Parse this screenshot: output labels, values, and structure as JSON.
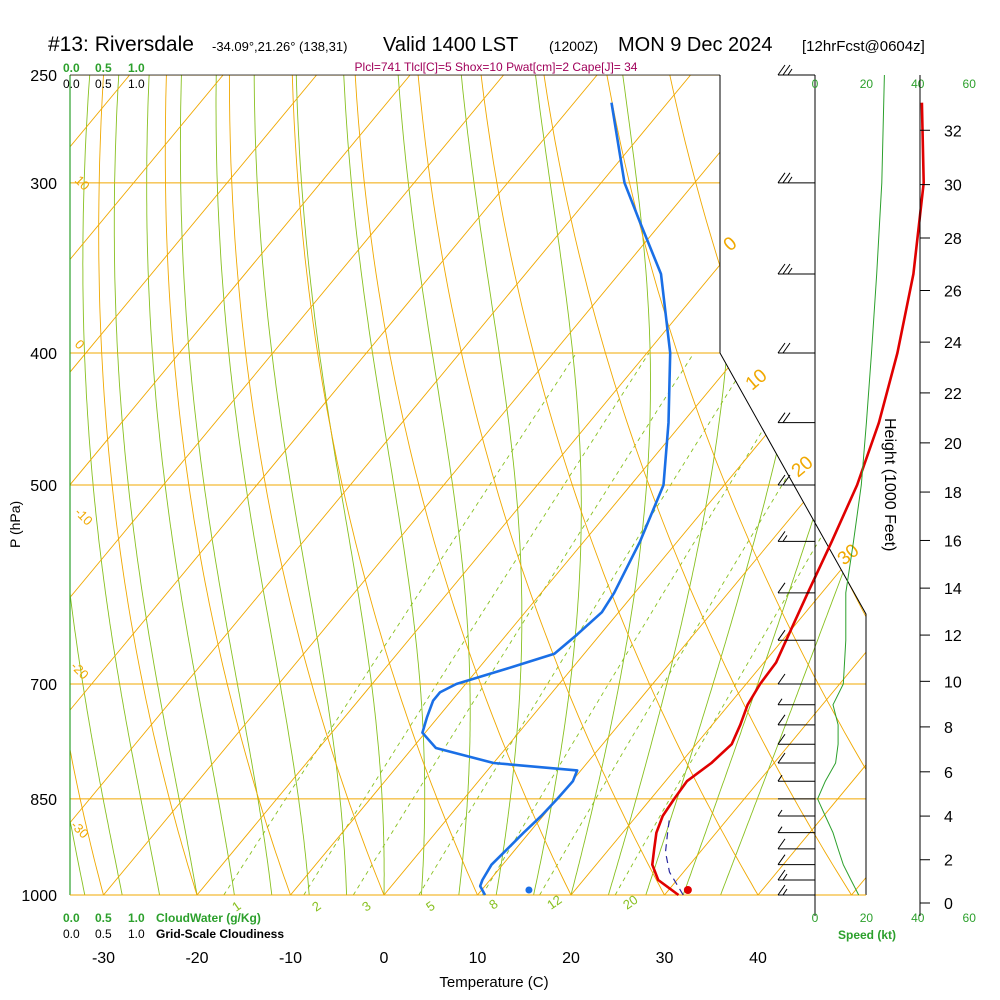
{
  "header": {
    "station": "#13: Riversdale",
    "coords": "-34.09°,21.26° (138,31)",
    "valid": "Valid 1400 LST",
    "zulu": "(1200Z)",
    "date": "MON 9 Dec 2024",
    "forecast": "[12hrFcst@0604z]"
  },
  "indices_line": "Plcl=741 Tlcl[C]=5 Shox=10 Pwat[cm]=2 Cape[J]= 34",
  "labels": {
    "cloud_water": "CloudWater (g/Kg)",
    "cloudiness": "Grid-Scale Cloudiness",
    "speed": "Speed (kt)",
    "cloud_scale": [
      "0.0",
      "0.5",
      "1.0"
    ]
  },
  "colors": {
    "temperature": "#e00000",
    "dewpoint": "#1a6fe6",
    "isotherm": "#f0a800",
    "dry_adiabat": "#f0a800",
    "moist_adiabat": "#88c020",
    "mixing_ratio": "#88c020",
    "speed_profile": "#2ca02c",
    "header_indices": "#a0005a"
  },
  "chart_data": {
    "type": "line",
    "title": "#13: Riversdale -34.09°,21.26° (138,31) Valid 1400 LST (1200Z) MON 9 Dec 2024 [12hrFcst@0604z]",
    "xlabel": "Temperature (C)",
    "ylabel": "P (hPa)",
    "y2label": "Height (1000 Feet)",
    "xlim": [
      -35,
      46
    ],
    "ylim": [
      1000,
      250
    ],
    "y_scale": "log",
    "x_ticks": [
      -30,
      -20,
      -10,
      0,
      10,
      20,
      30,
      40
    ],
    "pressure_ticks": [
      250,
      300,
      400,
      500,
      700,
      850,
      1000
    ],
    "height_ticks_kft": [
      0,
      2,
      4,
      6,
      8,
      10,
      12,
      14,
      16,
      18,
      20,
      22,
      24,
      26,
      28,
      30,
      32
    ],
    "mixing_ratio_labels": [
      "1",
      "2",
      "3",
      "5",
      "8",
      "12",
      "20"
    ],
    "dry_adiabat_labels": [
      "10",
      "0",
      "-10",
      "-20",
      "-30"
    ],
    "moist_adiabat_labels": [
      "0",
      "10",
      "20",
      "30"
    ],
    "speed_ticks_kt": [
      0,
      20,
      40,
      60
    ],
    "series": [
      {
        "name": "Temperature",
        "points": [
          [
            1000,
            31.5
          ],
          [
            975,
            28
          ],
          [
            950,
            26
          ],
          [
            925,
            24.8
          ],
          [
            900,
            23.6
          ],
          [
            875,
            22.8
          ],
          [
            850,
            22.5
          ],
          [
            825,
            22.3
          ],
          [
            800,
            23.3
          ],
          [
            775,
            23.8
          ],
          [
            750,
            23
          ],
          [
            725,
            22
          ],
          [
            700,
            21.5
          ],
          [
            675,
            21.3
          ],
          [
            650,
            20.4
          ],
          [
            600,
            18.5
          ],
          [
            550,
            16.5
          ],
          [
            500,
            14.2
          ],
          [
            450,
            11
          ],
          [
            400,
            6.8
          ],
          [
            350,
            1.5
          ],
          [
            300,
            -5.5
          ],
          [
            262,
            -12.8
          ]
        ]
      },
      {
        "name": "Dewpoint",
        "points": [
          [
            1000,
            10.8
          ],
          [
            985,
            9.5
          ],
          [
            975,
            9.2
          ],
          [
            950,
            8.8
          ],
          [
            925,
            9.1
          ],
          [
            900,
            9.4
          ],
          [
            875,
            9.8
          ],
          [
            850,
            10.0
          ],
          [
            825,
            10.1
          ],
          [
            810,
            9.6
          ],
          [
            800,
            0.0
          ],
          [
            780,
            -7.5
          ],
          [
            760,
            -10.3
          ],
          [
            740,
            -11.2
          ],
          [
            720,
            -12
          ],
          [
            710,
            -12
          ],
          [
            700,
            -11
          ],
          [
            680,
            -6.5
          ],
          [
            665,
            -3.2
          ],
          [
            645,
            -2.5
          ],
          [
            620,
            -1.8
          ],
          [
            600,
            -2.2
          ],
          [
            550,
            -4.0
          ],
          [
            500,
            -6.5
          ],
          [
            450,
            -11.5
          ],
          [
            400,
            -17.5
          ],
          [
            350,
            -25.5
          ],
          [
            320,
            -32.5
          ],
          [
            300,
            -37.5
          ],
          [
            262,
            -46
          ]
        ]
      },
      {
        "name": "Parcel",
        "points": [
          [
            1000,
            32
          ],
          [
            962,
            28.5
          ],
          [
            930,
            26.3
          ],
          [
            900,
            24.8
          ],
          [
            880,
            23.8
          ]
        ]
      }
    ],
    "surface_markers": {
      "temperature": 32.5,
      "dewpoint": 15.5
    },
    "wind_speed_kt": [
      [
        1000,
        17
      ],
      [
        975,
        14
      ],
      [
        950,
        11
      ],
      [
        925,
        9
      ],
      [
        900,
        7
      ],
      [
        875,
        4
      ],
      [
        850,
        1
      ],
      [
        825,
        4
      ],
      [
        800,
        8
      ],
      [
        775,
        9
      ],
      [
        750,
        9
      ],
      [
        725,
        7
      ],
      [
        700,
        11
      ],
      [
        650,
        12
      ],
      [
        600,
        12
      ],
      [
        550,
        15
      ],
      [
        500,
        18
      ],
      [
        450,
        20
      ],
      [
        400,
        22
      ],
      [
        350,
        24
      ],
      [
        300,
        26
      ],
      [
        250,
        27
      ]
    ],
    "grid": true
  }
}
